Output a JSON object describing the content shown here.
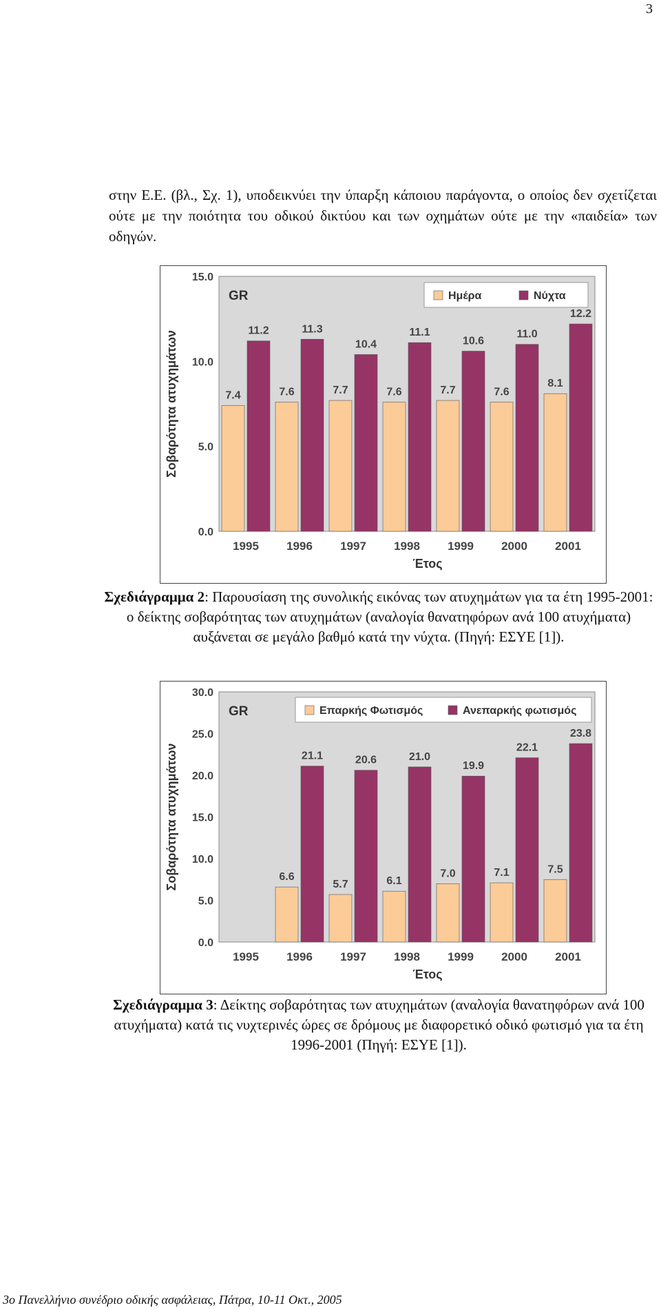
{
  "page_number": "3",
  "intro_text": "στην Ε.Ε. (βλ., Σχ. 1), υποδεικνύει την ύπαρξη κάποιου παράγοντα, ο οποίος δεν σχετίζεται ούτε με την ποιότητα του οδικού δικτύου και των οχημάτων ούτε με την «παιδεία» των οδηγών.",
  "figures": [
    {
      "caption_label": "Σχεδιάγραμμα 2",
      "caption_text": ": Παρουσίαση της συνολικής εικόνας των ατυχημάτων για τα έτη 1995-2001: ο δείκτης σοβαρότητας των ατυχημάτων (αναλογία θανατηφόρων ανά 100 ατυχήματα) αυξάνεται σε μεγάλο βαθμό κατά την νύχτα. (Πηγή: ΕΣΥΕ [1]).",
      "chart_data": {
        "type": "bar",
        "annotation": "GR",
        "categories": [
          "1995",
          "1996",
          "1997",
          "1998",
          "1999",
          "2000",
          "2001"
        ],
        "series": [
          {
            "name": "Ημέρα",
            "color": "#FBCB98",
            "values": [
              7.4,
              7.6,
              7.7,
              7.6,
              7.7,
              7.6,
              8.1
            ],
            "labels": [
              "7.4",
              "7.6",
              "7.7",
              "7.6",
              "7.7",
              "7.6",
              "8.1"
            ]
          },
          {
            "name": "Νύχτα",
            "color": "#963466",
            "values": [
              11.2,
              11.3,
              10.4,
              11.1,
              10.6,
              11.0,
              12.2
            ],
            "labels": [
              "11.2",
              "11.3",
              "10.4",
              "11.1",
              "10.6",
              "11.0",
              "12.2"
            ]
          }
        ],
        "xlabel": "Έτος",
        "ylabel": "Σοβαρότητα ατυχημάτων",
        "ylim": [
          0,
          15
        ],
        "yticks": [
          "0.0",
          "5.0",
          "10.0",
          "15.0"
        ],
        "legend_position": "top-right",
        "grid": false,
        "plot_background": "#D9D9D9"
      }
    },
    {
      "caption_label": "Σχεδιάγραμμα 3",
      "caption_text": ": Δείκτης σοβαρότητας των ατυχημάτων (αναλογία θανατηφόρων ανά 100 ατυχήματα) κατά τις νυχτερινές ώρες σε δρόμους με διαφορετικό οδικό φωτισμό για τα έτη 1996-2001 (Πηγή: ΕΣΥΕ [1]).",
      "chart_data": {
        "type": "bar",
        "annotation": "GR",
        "categories": [
          "1995",
          "1996",
          "1997",
          "1998",
          "1999",
          "2000",
          "2001"
        ],
        "series": [
          {
            "name": "Επαρκής Φωτισμός",
            "color": "#FBCB98",
            "values": [
              null,
              6.6,
              5.7,
              6.1,
              7.0,
              7.1,
              7.5
            ],
            "labels": [
              "",
              "6.6",
              "5.7",
              "6.1",
              "7.0",
              "7.1",
              "7.5"
            ]
          },
          {
            "name": "Ανεπαρκής φωτισμός",
            "color": "#963466",
            "values": [
              null,
              21.1,
              20.6,
              21.0,
              19.9,
              22.1,
              23.8
            ],
            "labels": [
              "",
              "21.1",
              "20.6",
              "21.0",
              "19.9",
              "22.1",
              "23.8"
            ]
          }
        ],
        "xlabel": "Έτος",
        "ylabel": "Σοβαρότητα ατυχημάτων",
        "ylim": [
          0,
          30
        ],
        "yticks": [
          "0.0",
          "5.0",
          "10.0",
          "15.0",
          "20.0",
          "25.0",
          "30.0"
        ],
        "legend_position": "top-right",
        "grid": false,
        "plot_background": "#D9D9D9"
      }
    }
  ],
  "footer": "3ο Πανελλήνιο συνέδριο οδικής ασφάλειας, Πάτρα, 10-11 Οκτ., 2005"
}
